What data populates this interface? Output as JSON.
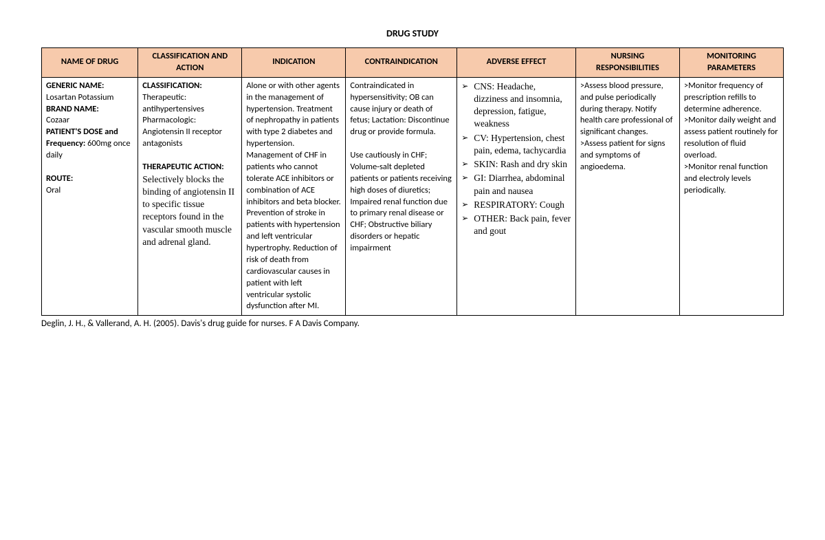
{
  "title": "DRUG STUDY",
  "headers": {
    "name": "NAME OF DRUG",
    "classification": "CLASSIFICATION AND ACTION",
    "indication": "INDICATION",
    "contraindication": "CONTRAINDICATION",
    "adverse": "ADVERSE EFFECT",
    "nursing": "NURSING RESPONSIBILITIES",
    "monitoring": "MONITORING PARAMETERS"
  },
  "name_cell": {
    "generic_label": "GENERIC NAME:",
    "generic_value": "Losartan Potassium",
    "brand_label": "BRAND NAME:",
    "brand_value": "Cozaar",
    "dose_label": "PATIENT'S DOSE and Frequency:",
    "dose_value": " 600mg once daily",
    "route_label": "ROUTE:",
    "route_value": "Oral"
  },
  "class_cell": {
    "class_label": "CLASSIFICATION:",
    "class_text": "Therapeutic: antihypertensives Pharmacologic: Angiotensin II receptor antagonists",
    "action_label": "THERAPEUTIC ACTION:",
    "action_text": "Selectively blocks the binding of angiotensin II to specific tissue receptors found in the vascular smooth muscle and adrenal gland."
  },
  "indication": "Alone or with other agents in the management of hypertension. Treatment of nephropathy in patients with type 2 diabetes and hypertension. Management of CHF in patients who cannot tolerate ACE inhibitors or combination of ACE inhibitors and beta blocker. Prevention of stroke in patients with hypertension and left ventricular hypertrophy. Reduction of risk of death from cardiovascular causes in patient with left ventricular systolic dysfunction after MI.",
  "contraindication": {
    "p1": "Contraindicated in hypersensitivity; OB can cause injury or death of fetus; Lactation: Discontinue drug or provide formula.",
    "p2": "Use cautiously in CHF; Volume-salt depleted patients or patients receiving high doses of diuretics; Impaired renal function due to primary renal disease or CHF; Obstructive biliary disorders or hepatic impairment"
  },
  "adverse": {
    "cns_label": "CNS: ",
    "cns": "Headache, dizziness and insomnia, depression, fatigue, weakness",
    "cv_label": "CV: ",
    "cv": "Hypertension, chest pain, edema, tachycardia",
    "skin_label": "SKIN: ",
    "skin": "Rash and dry skin",
    "gi_label": "GI: ",
    "gi": "Diarrhea, abdominal pain and nausea",
    "resp_label": "RESPIRATORY: ",
    "resp": "Cough",
    "other_label": "OTHER: ",
    "other": "Back pain, fever and gout"
  },
  "nursing": ">Assess blood pressure, and pulse periodically during therapy. Notify health care professional of significant changes.\n>Assess patient for signs and symptoms of angioedema.",
  "monitoring": ">Monitor frequency of prescription refills to determine adherence.\n>Monitor daily weight and assess patient routinely for resolution of fluid overload.\n>Monitor renal function and electroly levels periodically.",
  "citation": "Deglin, J. H., & Vallerand, A. H. (2005). Davis's drug guide for nurses. F A Davis Company.",
  "colors": {
    "header_bg": "#f7caac",
    "border": "#000000",
    "background": "#ffffff",
    "text": "#000000"
  }
}
